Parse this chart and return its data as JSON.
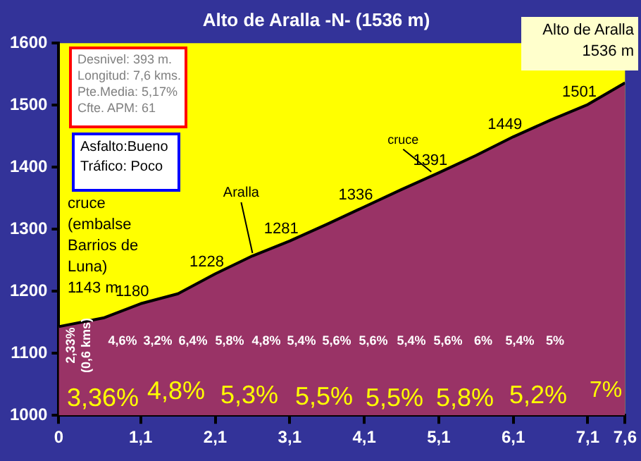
{
  "chart_data": {
    "type": "area",
    "title": "Alto de Aralla -N- (1536 m)",
    "x": [
      0,
      0.6,
      1.1,
      1.6,
      2.1,
      2.6,
      3.1,
      3.6,
      4.1,
      4.6,
      5.1,
      5.6,
      6.1,
      6.6,
      7.1,
      7.6
    ],
    "series": [
      {
        "color": "#993366",
        "values": [
          1143,
          1157,
          1180,
          1196,
          1228,
          1257,
          1281,
          1308,
          1336,
          1364,
          1391,
          1419,
          1449,
          1476,
          1501,
          1536
        ],
        "value_labels": [
          null,
          null,
          "1180",
          null,
          "1228",
          null,
          "1281",
          null,
          "1336",
          null,
          "1391",
          null,
          "1449",
          null,
          "1501",
          null
        ]
      }
    ],
    "xlim": [
      0,
      7.6
    ],
    "xticks": [
      0,
      {
        "value": 1.1,
        "label": "1,1"
      },
      {
        "value": 2.1,
        "label": "2,1"
      },
      {
        "value": 3.1,
        "label": "3,1"
      },
      {
        "value": 4.1,
        "label": "4,1"
      },
      {
        "value": 5.1,
        "label": "5,1"
      },
      {
        "value": 6.1,
        "label": "6,1"
      },
      {
        "value": 7.1,
        "label": "7,1"
      },
      {
        "value": 7.6,
        "label": "7,6"
      }
    ],
    "ylim": [
      1000,
      1600
    ],
    "yticks": [
      1000,
      1100,
      1200,
      1300,
      1400,
      1500,
      1600
    ],
    "grid": false,
    "legend": false,
    "marker": "none",
    "annotations": [
      "Desnivel: 393 m.\nLongitud: 7,6 kms.\nPte.Media: 5,17%\nCfte. APM: 61",
      "Asfalto:Bueno\nTráfico: Poco",
      "Alto de Aralla\n1536 m",
      "cruce\n(embalse\nBarrios de\nLuna)\n1143 m",
      {
        "text": "Aralla",
        "x": 2.6,
        "y": 1257
      },
      {
        "text": "cruce",
        "x": 5.0,
        "y": 1388
      },
      "2,33%\n(0,6 kms)",
      "4,6%",
      "3,2%",
      "6,4%",
      "5,8%",
      "4,8%",
      "5,4%",
      "5,6%",
      "5,6%",
      "5,4%",
      "5,6%",
      "6%",
      "5,4%",
      "5%",
      "3,36%",
      "4,8%",
      "5,3%",
      "5,5%",
      "5,5%",
      "5,8%",
      "5,2%",
      "7%"
    ]
  }
}
